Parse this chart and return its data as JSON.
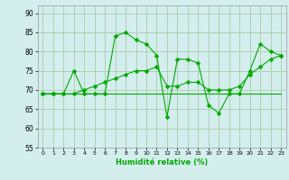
{
  "xlabel": "Humidité relative (%)",
  "background_color": "#d4eeee",
  "grid_color": "#aaccaa",
  "line_color": "#00aa00",
  "ylim": [
    55,
    92
  ],
  "xlim": [
    -0.5,
    23.5
  ],
  "yticks": [
    55,
    60,
    65,
    70,
    75,
    80,
    85,
    90
  ],
  "xticks": [
    0,
    1,
    2,
    3,
    4,
    5,
    6,
    7,
    8,
    9,
    10,
    11,
    12,
    13,
    14,
    15,
    16,
    17,
    18,
    19,
    20,
    21,
    22,
    23
  ],
  "line1_x": [
    0,
    1,
    2,
    3,
    4,
    5,
    6,
    7,
    8,
    9,
    10,
    11,
    12,
    13,
    14,
    15,
    16,
    17,
    18,
    19,
    20,
    21,
    22,
    23
  ],
  "line1_y": [
    69,
    69,
    69,
    75,
    69,
    69,
    69,
    84,
    85,
    83,
    82,
    79,
    63,
    78,
    78,
    77,
    66,
    64,
    69,
    69,
    75,
    82,
    80,
    79
  ],
  "line2_x": [
    0,
    1,
    2,
    3,
    4,
    5,
    6,
    7,
    8,
    9,
    10,
    11,
    12,
    13,
    14,
    15,
    16,
    17,
    18,
    19,
    20,
    21,
    22,
    23
  ],
  "line2_y": [
    69,
    69,
    69,
    69,
    69,
    69,
    69,
    69,
    69,
    69,
    69,
    69,
    69,
    69,
    69,
    69,
    69,
    69,
    69,
    69,
    69,
    69,
    69,
    69
  ],
  "line3_x": [
    0,
    1,
    2,
    3,
    4,
    5,
    6,
    7,
    8,
    9,
    10,
    11,
    12,
    13,
    14,
    15,
    16,
    17,
    18,
    19,
    20,
    21,
    22,
    23
  ],
  "line3_y": [
    69,
    69,
    69,
    69,
    70,
    71,
    72,
    73,
    74,
    75,
    75,
    76,
    71,
    71,
    72,
    72,
    70,
    70,
    70,
    71,
    74,
    76,
    78,
    79
  ]
}
